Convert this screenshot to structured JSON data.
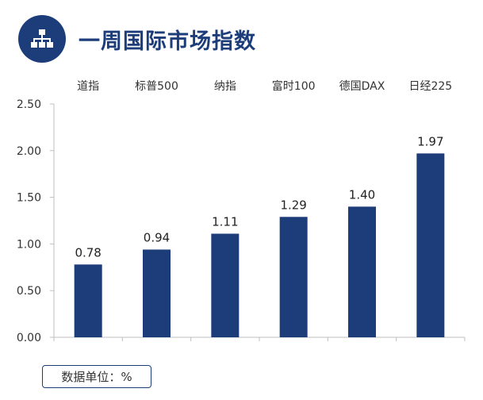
{
  "title": "一周国际市场指数",
  "header_icon": "org-chart-icon",
  "unit_label": "数据单位：%",
  "colors": {
    "brand": "#1c3d7a",
    "bar": "#1c3d7a"
  },
  "chart_data": {
    "type": "bar",
    "title": "",
    "xlabel": "",
    "ylabel": "",
    "categories": [
      "道指",
      "标普500",
      "纳指",
      "富时100",
      "德国DAX",
      "日经225"
    ],
    "values": [
      0.78,
      0.94,
      1.11,
      1.29,
      1.4,
      1.97
    ],
    "value_labels": [
      "0.78",
      "0.94",
      "1.11",
      "1.29",
      "1.40",
      "1.97"
    ],
    "ylim": [
      0,
      2.5
    ],
    "yticks": [
      "0.00",
      "0.50",
      "1.00",
      "1.50",
      "2.00",
      "2.50"
    ],
    "category_axis_position": "top",
    "grid": false,
    "legend": "none"
  }
}
